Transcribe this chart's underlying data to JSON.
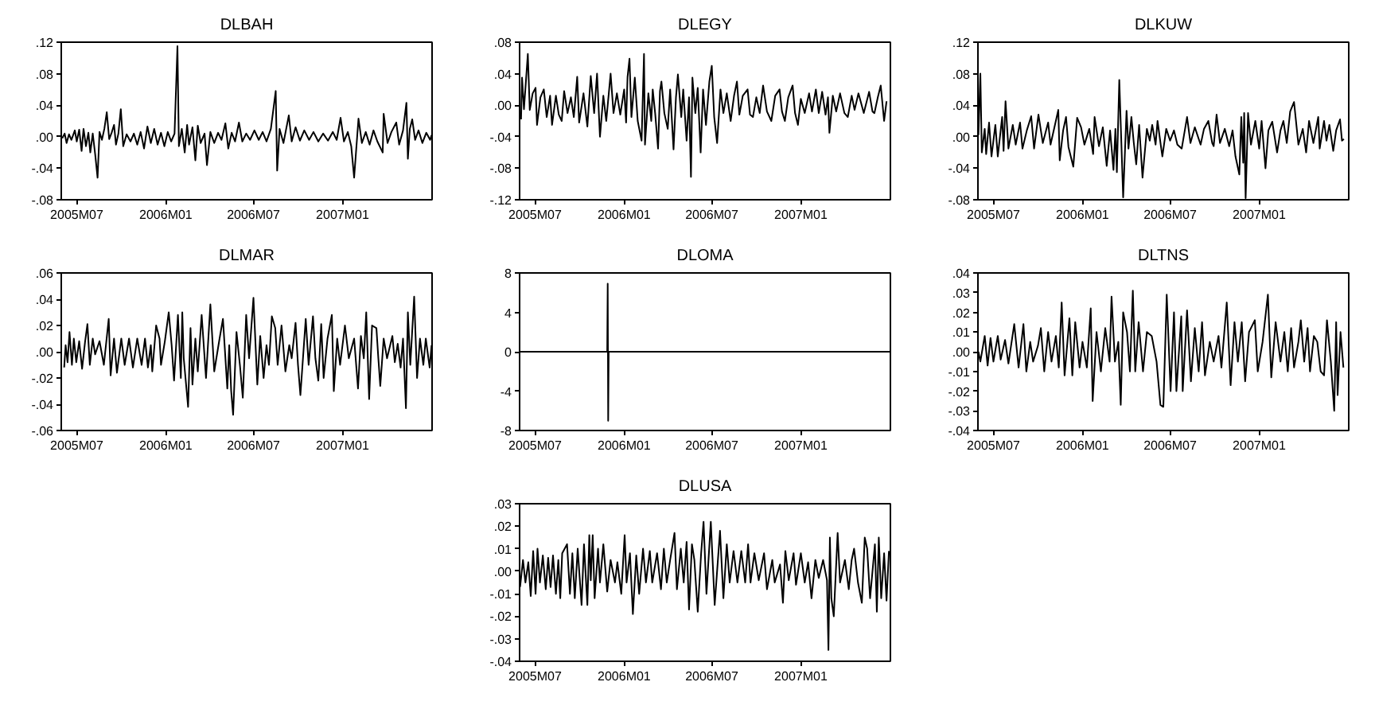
{
  "chart_data": [
    {
      "type": "line",
      "title": "DLBAH",
      "x": [
        "2005-06-01",
        "2005-06-06",
        "2005-06-10",
        "2005-06-15",
        "2005-06-20",
        "2005-06-27",
        "2005-07-01",
        "2005-07-06",
        "2005-07-11",
        "2005-07-15",
        "2005-07-20",
        "2005-07-25",
        "2005-07-29",
        "2005-08-03",
        "2005-08-08",
        "2005-08-13",
        "2005-08-17",
        "2005-08-22",
        "2005-08-27",
        "2005-09-01",
        "2005-09-06",
        "2005-09-11",
        "2005-09-16",
        "2005-09-20",
        "2005-09-25",
        "2005-09-30",
        "2005-10-05",
        "2005-10-12",
        "2005-10-20",
        "2005-10-27",
        "2005-11-03",
        "2005-11-10",
        "2005-11-17",
        "2005-11-24",
        "2005-12-01",
        "2005-12-08",
        "2005-12-15",
        "2005-12-22",
        "2005-12-29",
        "2006-01-05",
        "2006-01-12",
        "2006-01-19",
        "2006-01-25",
        "2006-01-28",
        "2006-02-03",
        "2006-02-09",
        "2006-02-14",
        "2006-02-18",
        "2006-02-25",
        "2006-03-03",
        "2006-03-08",
        "2006-03-14",
        "2006-03-22",
        "2006-03-27",
        "2006-04-03",
        "2006-04-11",
        "2006-04-19",
        "2006-04-26",
        "2006-05-04",
        "2006-05-10",
        "2006-05-17",
        "2006-05-24",
        "2006-06-01",
        "2006-06-08",
        "2006-06-16",
        "2006-06-24",
        "2006-07-03",
        "2006-07-12",
        "2006-07-20",
        "2006-07-28",
        "2006-08-06",
        "2006-08-16",
        "2006-08-19",
        "2006-08-24",
        "2006-09-01",
        "2006-09-12",
        "2006-09-18",
        "2006-09-26",
        "2006-10-05",
        "2006-10-14",
        "2006-10-24",
        "2006-11-02",
        "2006-11-12",
        "2006-11-22",
        "2006-12-02",
        "2006-12-12",
        "2006-12-20",
        "2006-12-28",
        "2007-01-04",
        "2007-01-12",
        "2007-01-19",
        "2007-01-25",
        "2007-02-03",
        "2007-02-10",
        "2007-02-18",
        "2007-02-26",
        "2007-03-06",
        "2007-03-14",
        "2007-03-25",
        "2007-03-27",
        "2007-04-04",
        "2007-04-12",
        "2007-04-22",
        "2007-04-28",
        "2007-05-06",
        "2007-05-13",
        "2007-05-16",
        "2007-05-20",
        "2007-05-25",
        "2007-05-31",
        "2007-06-07",
        "2007-06-15",
        "2007-06-23",
        "2007-07-01",
        "2007-07-04"
      ],
      "series": [
        {
          "color": "#000000",
          "values": [
            -0.002,
            0.004,
            -0.008,
            0.003,
            -0.004,
            0.008,
            -0.006,
            0.009,
            -0.018,
            0.01,
            -0.012,
            0.005,
            -0.02,
            0.004,
            -0.022,
            -0.052,
            0.006,
            -0.004,
            0.01,
            0.031,
            -0.003,
            0.005,
            0.015,
            -0.01,
            0.004,
            0.035,
            -0.012,
            0.003,
            -0.006,
            0.004,
            -0.01,
            0.006,
            -0.015,
            0.013,
            -0.008,
            0.01,
            -0.01,
            0.005,
            -0.012,
            0.006,
            -0.006,
            0.004,
            0.115,
            -0.012,
            0.01,
            -0.02,
            0.015,
            -0.01,
            0.012,
            -0.03,
            0.014,
            -0.008,
            0.004,
            -0.036,
            0.006,
            -0.008,
            0.005,
            -0.004,
            0.017,
            -0.015,
            0.005,
            -0.006,
            0.018,
            -0.006,
            0.004,
            -0.004,
            0.008,
            -0.004,
            0.006,
            -0.006,
            0.01,
            0.058,
            -0.043,
            0.01,
            -0.008,
            0.027,
            -0.006,
            0.012,
            -0.005,
            0.008,
            -0.004,
            0.006,
            -0.006,
            0.004,
            -0.005,
            0.006,
            -0.004,
            0.024,
            -0.006,
            0.006,
            -0.012,
            -0.052,
            0.023,
            -0.008,
            0.006,
            -0.01,
            0.008,
            -0.006,
            -0.02,
            0.029,
            -0.008,
            0.006,
            0.018,
            -0.01,
            0.008,
            0.043,
            -0.028,
            0.01,
            0.022,
            -0.004,
            0.008,
            -0.008,
            0.005,
            -0.004,
            0.002
          ]
        }
      ],
      "xlim": [
        "2005-05-30",
        "2007-07-05"
      ],
      "xticks": [
        {
          "value": "2005-07-01",
          "label": "2005M07"
        },
        {
          "value": "2006-01-01",
          "label": "2006M01"
        },
        {
          "value": "2006-07-01",
          "label": "2006M07"
        },
        {
          "value": "2007-01-01",
          "label": "2007M01"
        }
      ],
      "ylim": [
        -0.08,
        0.12
      ],
      "yticks": [
        {
          "value": 0.12,
          "label": ".12"
        },
        {
          "value": 0.08,
          "label": ".08"
        },
        {
          "value": 0.04,
          "label": ".04"
        },
        {
          "value": 0,
          "label": ".00"
        },
        {
          "value": -0.04,
          "label": "-.04"
        },
        {
          "value": -0.08,
          "label": "-.08"
        }
      ]
    },
    {
      "type": "line",
      "title": "DLEGY",
      "x": [
        "2005-06-02",
        "2005-06-04",
        "2005-06-08",
        "2005-06-16",
        "2005-06-20",
        "2005-06-26",
        "2005-07-02",
        "2005-07-05",
        "2005-07-12",
        "2005-07-19",
        "2005-07-25",
        "2005-08-01",
        "2005-08-05",
        "2005-08-13",
        "2005-08-19",
        "2005-08-25",
        "2005-08-30",
        "2005-09-06",
        "2005-09-13",
        "2005-09-19",
        "2005-09-26",
        "2005-09-30",
        "2005-10-09",
        "2005-10-17",
        "2005-10-24",
        "2005-10-31",
        "2005-11-06",
        "2005-11-12",
        "2005-11-19",
        "2005-11-25",
        "2005-12-04",
        "2005-12-10",
        "2005-12-17",
        "2005-12-24",
        "2006-01-01",
        "2006-01-05",
        "2006-01-08",
        "2006-01-12",
        "2006-01-16",
        "2006-01-23",
        "2006-01-29",
        "2006-02-06",
        "2006-02-11",
        "2006-02-13",
        "2006-02-20",
        "2006-02-26",
        "2006-03-01",
        "2006-03-06",
        "2006-03-12",
        "2006-03-16",
        "2006-03-19",
        "2006-03-25",
        "2006-04-01",
        "2006-04-06",
        "2006-04-13",
        "2006-04-18",
        "2006-04-22",
        "2006-04-29",
        "2006-05-03",
        "2006-05-10",
        "2006-05-15",
        "2006-05-19",
        "2006-05-22",
        "2006-05-28",
        "2006-06-02",
        "2006-06-08",
        "2006-06-13",
        "2006-06-19",
        "2006-06-26",
        "2006-07-01",
        "2006-07-06",
        "2006-07-12",
        "2006-07-19",
        "2006-07-25",
        "2006-08-01",
        "2006-08-09",
        "2006-08-16",
        "2006-08-22",
        "2006-08-27",
        "2006-09-03",
        "2006-09-13",
        "2006-09-18",
        "2006-09-24",
        "2006-10-01",
        "2006-10-08",
        "2006-10-15",
        "2006-10-23",
        "2006-11-01",
        "2006-11-09",
        "2006-11-18",
        "2006-11-23",
        "2006-11-29",
        "2006-12-06",
        "2006-12-15",
        "2006-12-20",
        "2006-12-26",
        "2007-01-01",
        "2007-01-09",
        "2007-01-18",
        "2007-01-24",
        "2007-02-01",
        "2007-02-07",
        "2007-02-14",
        "2007-02-21",
        "2007-02-26",
        "2007-03-01",
        "2007-03-08",
        "2007-03-15",
        "2007-03-23",
        "2007-04-01",
        "2007-04-08",
        "2007-04-16",
        "2007-04-22",
        "2007-04-30",
        "2007-05-11",
        "2007-05-22",
        "2007-05-29",
        "2007-06-02",
        "2007-06-09",
        "2007-06-15",
        "2007-06-22",
        "2007-06-27"
      ],
      "series": [
        {
          "color": "#000000",
          "values": [
            -0.018,
            0.035,
            -0.005,
            0.065,
            -0.006,
            0.015,
            0.022,
            -0.025,
            0.01,
            0.02,
            -0.015,
            0.012,
            -0.025,
            0.012,
            -0.012,
            -0.02,
            0.018,
            -0.01,
            0.01,
            -0.015,
            0.036,
            -0.022,
            0.015,
            -0.027,
            0.037,
            -0.01,
            0.04,
            -0.04,
            0.012,
            -0.02,
            0.04,
            -0.01,
            0.015,
            -0.012,
            0.02,
            -0.022,
            0.036,
            0.059,
            -0.015,
            0.035,
            -0.02,
            -0.045,
            0.065,
            -0.05,
            0.015,
            -0.02,
            0.02,
            -0.01,
            -0.055,
            0.018,
            0.03,
            -0.01,
            -0.03,
            0.02,
            -0.056,
            0.01,
            0.039,
            -0.015,
            0.02,
            -0.045,
            0.01,
            -0.091,
            0.035,
            -0.01,
            0.022,
            -0.06,
            0.02,
            -0.025,
            0.03,
            0.05,
            -0.015,
            -0.048,
            0.02,
            -0.01,
            0.015,
            -0.02,
            0.012,
            0.03,
            -0.012,
            0.012,
            0.02,
            -0.012,
            -0.015,
            0.01,
            -0.01,
            0.025,
            -0.008,
            -0.02,
            0.012,
            0.02,
            -0.008,
            -0.02,
            0.01,
            0.025,
            -0.01,
            -0.025,
            0.008,
            -0.01,
            0.015,
            -0.008,
            0.02,
            -0.01,
            0.017,
            -0.012,
            0.01,
            -0.035,
            0.012,
            -0.008,
            0.015,
            -0.01,
            -0.015,
            0.012,
            -0.006,
            0.015,
            -0.01,
            0.017,
            -0.008,
            -0.01,
            0.01,
            0.025,
            -0.02,
            0.005
          ]
        }
      ],
      "xlim": [
        "2005-05-30",
        "2007-07-05"
      ],
      "xticks": [
        {
          "value": "2005-07-01",
          "label": "2005M07"
        },
        {
          "value": "2006-01-01",
          "label": "2006M01"
        },
        {
          "value": "2006-07-01",
          "label": "2006M07"
        },
        {
          "value": "2007-01-01",
          "label": "2007M01"
        }
      ],
      "ylim": [
        -0.12,
        0.08
      ],
      "yticks": [
        {
          "value": 0.08,
          "label": ".08"
        },
        {
          "value": 0.04,
          "label": ".04"
        },
        {
          "value": 0,
          "label": ".00"
        },
        {
          "value": -0.04,
          "label": "-.04"
        },
        {
          "value": -0.08,
          "label": "-.08"
        },
        {
          "value": -0.12,
          "label": "-.12"
        }
      ]
    },
    {
      "type": "line",
      "title": "DLKUW",
      "x": [
        "2005-05-31",
        "2005-06-04",
        "2005-06-07",
        "2005-06-13",
        "2005-06-16",
        "2005-06-22",
        "2005-06-27",
        "2005-07-05",
        "2005-07-10",
        "2005-07-19",
        "2005-07-22",
        "2005-07-26",
        "2005-08-01",
        "2005-08-10",
        "2005-08-16",
        "2005-08-25",
        "2005-08-30",
        "2005-09-08",
        "2005-09-17",
        "2005-09-23",
        "2005-10-02",
        "2005-10-11",
        "2005-10-22",
        "2005-10-27",
        "2005-11-04",
        "2005-11-12",
        "2005-11-15",
        "2005-11-22",
        "2005-11-28",
        "2005-12-03",
        "2005-12-13",
        "2005-12-21",
        "2005-12-29",
        "2006-01-05",
        "2006-01-15",
        "2006-01-23",
        "2006-01-26",
        "2006-02-04",
        "2006-02-12",
        "2006-02-20",
        "2006-02-27",
        "2006-03-06",
        "2006-03-10",
        "2006-03-13",
        "2006-03-18",
        "2006-03-26",
        "2006-04-02",
        "2006-04-06",
        "2006-04-12",
        "2006-04-17",
        "2006-04-22",
        "2006-04-28",
        "2006-05-05",
        "2006-05-14",
        "2006-05-20",
        "2006-05-25",
        "2006-06-01",
        "2006-06-05",
        "2006-06-12",
        "2006-06-15",
        "2006-06-23",
        "2006-07-01",
        "2006-07-09",
        "2006-07-16",
        "2006-07-25",
        "2006-08-05",
        "2006-08-12",
        "2006-08-21",
        "2006-09-02",
        "2006-09-09",
        "2006-09-18",
        "2006-09-26",
        "2006-09-29",
        "2006-10-05",
        "2006-10-12",
        "2006-10-22",
        "2006-10-31",
        "2006-11-07",
        "2006-11-13",
        "2006-11-21",
        "2006-11-25",
        "2006-11-29",
        "2006-12-01",
        "2006-12-04",
        "2006-12-09",
        "2006-12-15",
        "2006-12-24",
        "2007-01-01",
        "2007-01-06",
        "2007-01-14",
        "2007-01-20",
        "2007-01-28",
        "2007-02-07",
        "2007-02-14",
        "2007-02-20",
        "2007-02-27",
        "2007-03-06",
        "2007-03-14",
        "2007-03-23",
        "2007-04-01",
        "2007-04-08",
        "2007-04-14",
        "2007-04-23",
        "2007-05-03",
        "2007-05-06",
        "2007-05-15",
        "2007-05-20",
        "2007-05-26",
        "2007-06-03",
        "2007-06-09",
        "2007-06-17",
        "2007-06-21",
        "2007-06-25"
      ],
      "series": [
        {
          "color": "#000000",
          "values": [
            0.002,
            0.08,
            -0.02,
            0.01,
            -0.022,
            0.018,
            -0.025,
            0.015,
            -0.025,
            0.025,
            -0.018,
            0.045,
            -0.015,
            0.015,
            -0.01,
            0.018,
            -0.015,
            0.008,
            0.026,
            -0.015,
            0.028,
            -0.008,
            0.018,
            -0.01,
            0.012,
            0.034,
            -0.03,
            0.008,
            0.025,
            -0.013,
            -0.038,
            0.024,
            0.012,
            -0.01,
            0.01,
            -0.022,
            0.025,
            -0.012,
            0.012,
            -0.037,
            0.008,
            -0.042,
            0.01,
            -0.045,
            0.072,
            -0.077,
            0.033,
            -0.015,
            0.025,
            -0.008,
            -0.035,
            0.015,
            -0.052,
            0.01,
            -0.005,
            0.015,
            -0.01,
            0.02,
            -0.012,
            -0.025,
            0.01,
            -0.005,
            0.008,
            -0.01,
            -0.015,
            0.025,
            -0.008,
            0.012,
            -0.01,
            0.01,
            0.02,
            -0.008,
            -0.012,
            0.028,
            -0.008,
            0.01,
            -0.012,
            0.008,
            -0.025,
            -0.048,
            0.025,
            -0.033,
            0.03,
            -0.078,
            0.03,
            -0.01,
            0.02,
            -0.015,
            0.02,
            -0.04,
            0.008,
            0.019,
            -0.02,
            0.008,
            0.02,
            -0.008,
            0.032,
            0.044,
            -0.01,
            0.01,
            -0.02,
            0.02,
            -0.008,
            0.025,
            -0.015,
            0.02,
            -0.005,
            0.015,
            -0.018,
            0.008,
            0.022,
            -0.005,
            -0.003
          ]
        }
      ],
      "xlim": [
        "2005-05-30",
        "2007-07-05"
      ],
      "xticks": [
        {
          "value": "2005-07-01",
          "label": "2005M07"
        },
        {
          "value": "2006-01-01",
          "label": "2006M01"
        },
        {
          "value": "2006-07-01",
          "label": "2006M07"
        },
        {
          "value": "2007-01-01",
          "label": "2007M01"
        }
      ],
      "ylim": [
        -0.08,
        0.12
      ],
      "yticks": [
        {
          "value": 0.12,
          "label": ".12"
        },
        {
          "value": 0.08,
          "label": ".08"
        },
        {
          "value": 0.04,
          "label": ".04"
        },
        {
          "value": 0,
          "label": ".00"
        },
        {
          "value": -0.04,
          "label": "-.04"
        },
        {
          "value": -0.08,
          "label": "-.08"
        }
      ]
    },
    {
      "type": "line",
      "title": "DLMAR",
      "x": [
        "2005-06-05",
        "2005-06-08",
        "2005-06-12",
        "2005-06-16",
        "2005-06-21",
        "2005-06-25",
        "2005-06-30",
        "2005-07-06",
        "2005-07-12",
        "2005-07-18",
        "2005-07-23",
        "2005-07-28",
        "2005-08-03",
        "2005-08-08",
        "2005-08-17",
        "2005-08-26",
        "2005-09-05",
        "2005-09-09",
        "2005-09-16",
        "2005-09-22",
        "2005-10-01",
        "2005-10-08",
        "2005-10-17",
        "2005-10-25",
        "2005-11-03",
        "2005-11-12",
        "2005-11-19",
        "2005-11-25",
        "2005-12-01",
        "2005-12-04",
        "2005-12-12",
        "2005-12-19",
        "2005-12-22",
        "2005-12-30",
        "2006-01-07",
        "2006-01-13",
        "2006-01-18",
        "2006-01-26",
        "2006-02-01",
        "2006-02-04",
        "2006-02-07",
        "2006-02-16",
        "2006-02-21",
        "2006-02-25",
        "2006-03-03",
        "2006-03-08",
        "2006-03-16",
        "2006-03-25",
        "2006-04-03",
        "2006-04-11",
        "2006-04-22",
        "2006-04-29",
        "2006-05-08",
        "2006-05-12",
        "2006-05-16",
        "2006-05-20",
        "2006-05-27",
        "2006-06-03",
        "2006-06-09",
        "2006-06-16",
        "2006-06-22",
        "2006-07-01",
        "2006-07-09",
        "2006-07-15",
        "2006-07-22",
        "2006-07-28",
        "2006-08-02",
        "2006-08-08",
        "2006-08-15",
        "2006-08-20",
        "2006-08-28",
        "2006-09-05",
        "2006-09-13",
        "2006-09-18",
        "2006-09-26",
        "2006-10-01",
        "2006-10-06",
        "2006-10-17",
        "2006-10-23",
        "2006-11-01",
        "2006-11-06",
        "2006-11-12",
        "2006-11-18",
        "2006-11-23",
        "2006-12-01",
        "2006-12-10",
        "2006-12-14",
        "2006-12-21",
        "2006-12-27",
        "2007-01-06",
        "2007-01-14",
        "2007-01-25",
        "2007-02-02",
        "2007-02-08",
        "2007-02-14",
        "2007-02-19",
        "2007-02-25",
        "2007-03-03",
        "2007-03-12",
        "2007-03-16",
        "2007-03-20",
        "2007-03-27",
        "2007-04-03",
        "2007-04-14",
        "2007-04-19",
        "2007-04-25",
        "2007-05-01",
        "2007-05-06",
        "2007-05-12",
        "2007-05-16",
        "2007-05-21",
        "2007-05-29",
        "2007-06-04",
        "2007-06-10",
        "2007-06-17",
        "2007-06-22",
        "2007-06-30",
        "2007-07-04"
      ],
      "series": [
        {
          "color": "#000000",
          "values": [
            -0.012,
            0.005,
            -0.008,
            0.015,
            -0.01,
            0.01,
            -0.008,
            0.008,
            -0.013,
            0.007,
            0.021,
            -0.01,
            0.01,
            -0.002,
            0.008,
            -0.01,
            0.025,
            -0.018,
            0.01,
            -0.016,
            0.01,
            -0.01,
            0.01,
            -0.012,
            0.01,
            -0.01,
            0.01,
            -0.012,
            0.005,
            -0.015,
            0.02,
            0.01,
            -0.01,
            0.008,
            0.03,
            0.005,
            -0.022,
            0.028,
            -0.02,
            0.03,
            -0.005,
            -0.042,
            0.018,
            -0.025,
            0.01,
            -0.015,
            0.028,
            -0.02,
            0.036,
            -0.015,
            0.01,
            0.025,
            -0.028,
            0.005,
            -0.03,
            -0.048,
            0.015,
            -0.01,
            -0.035,
            0.028,
            -0.005,
            0.041,
            -0.025,
            0.012,
            -0.02,
            0.005,
            -0.01,
            0.027,
            0.018,
            -0.01,
            0.02,
            -0.015,
            0.005,
            -0.005,
            0.022,
            -0.01,
            -0.033,
            0.025,
            -0.01,
            0.027,
            -0.005,
            -0.022,
            0.021,
            -0.02,
            0.01,
            0.028,
            -0.03,
            0.01,
            -0.01,
            0.02,
            -0.005,
            0.01,
            -0.028,
            0.012,
            -0.005,
            0.03,
            -0.036,
            0.02,
            0.018,
            -0.005,
            -0.026,
            0.01,
            -0.005,
            0.012,
            -0.008,
            0.006,
            -0.012,
            0.01,
            -0.043,
            0.03,
            -0.01,
            0.042,
            -0.02,
            0.01,
            -0.01,
            0.01,
            -0.012,
            0.005
          ]
        }
      ],
      "xlim": [
        "2005-05-30",
        "2007-07-05"
      ],
      "xticks": [
        {
          "value": "2005-07-01",
          "label": "2005M07"
        },
        {
          "value": "2006-01-01",
          "label": "2006M01"
        },
        {
          "value": "2006-07-01",
          "label": "2006M07"
        },
        {
          "value": "2007-01-01",
          "label": "2007M01"
        }
      ],
      "ylim": [
        -0.06,
        0.06
      ],
      "yticks": [
        {
          "value": 0.06,
          "label": ".06"
        },
        {
          "value": 0.04,
          "label": ".04"
        },
        {
          "value": 0.02,
          "label": ".02"
        },
        {
          "value": 0,
          "label": ".00"
        },
        {
          "value": -0.02,
          "label": "-.02"
        },
        {
          "value": -0.04,
          "label": "-.04"
        },
        {
          "value": -0.06,
          "label": "-.06"
        }
      ]
    },
    {
      "type": "line",
      "title": "DLOMA",
      "x": [
        "2005-05-31",
        "2005-11-27",
        "2005-11-28",
        "2005-11-29",
        "2005-11-30",
        "2007-07-04"
      ],
      "series": [
        {
          "color": "#000000",
          "values": [
            0,
            0,
            6.9,
            -7.0,
            0,
            0
          ]
        }
      ],
      "xlim": [
        "2005-05-30",
        "2007-07-05"
      ],
      "xticks": [
        {
          "value": "2005-07-01",
          "label": "2005M07"
        },
        {
          "value": "2006-01-01",
          "label": "2006M01"
        },
        {
          "value": "2006-07-01",
          "label": "2006M07"
        },
        {
          "value": "2007-01-01",
          "label": "2007M01"
        }
      ],
      "ylim": [
        -8,
        8
      ],
      "yticks": [
        8,
        4,
        0,
        -4,
        -8
      ]
    },
    {
      "type": "line",
      "title": "DLTNS",
      "x": [
        "2005-05-31",
        "2005-06-04",
        "2005-06-13",
        "2005-06-19",
        "2005-06-25",
        "2005-07-01",
        "2005-07-10",
        "2005-07-16",
        "2005-07-25",
        "2005-08-01",
        "2005-08-13",
        "2005-08-22",
        "2005-09-01",
        "2005-09-07",
        "2005-09-15",
        "2005-09-21",
        "2005-10-01",
        "2005-10-07",
        "2005-10-14",
        "2005-10-22",
        "2005-10-29",
        "2005-11-07",
        "2005-11-13",
        "2005-11-19",
        "2005-11-25",
        "2005-12-05",
        "2005-12-11",
        "2005-12-17",
        "2005-12-26",
        "2006-01-01",
        "2006-01-10",
        "2006-01-18",
        "2006-01-22",
        "2006-01-30",
        "2006-02-08",
        "2006-02-17",
        "2006-02-26",
        "2006-03-02",
        "2006-03-09",
        "2006-03-16",
        "2006-03-21",
        "2006-03-26",
        "2006-04-03",
        "2006-04-09",
        "2006-04-15",
        "2006-04-20",
        "2006-04-27",
        "2006-05-06",
        "2006-05-14",
        "2006-05-24",
        "2006-06-03",
        "2006-06-11",
        "2006-06-17",
        "2006-06-24",
        "2006-07-02",
        "2006-07-09",
        "2006-07-14",
        "2006-07-24",
        "2006-07-27",
        "2006-08-05",
        "2006-08-13",
        "2006-08-21",
        "2006-08-29",
        "2006-09-05",
        "2006-09-11",
        "2006-09-21",
        "2006-09-29",
        "2006-10-09",
        "2006-10-15",
        "2006-10-26",
        "2006-11-03",
        "2006-11-11",
        "2006-11-18",
        "2006-11-26",
        "2006-12-03",
        "2006-12-11",
        "2006-12-23",
        "2006-12-29",
        "2007-01-08",
        "2007-01-19",
        "2007-01-26",
        "2007-02-04",
        "2007-02-14",
        "2007-02-22",
        "2007-03-01",
        "2007-03-08",
        "2007-03-14",
        "2007-03-23",
        "2007-03-28",
        "2007-04-04",
        "2007-04-11",
        "2007-04-16",
        "2007-04-24",
        "2007-05-01",
        "2007-05-08",
        "2007-05-15",
        "2007-05-21",
        "2007-05-29",
        "2007-06-05",
        "2007-06-09",
        "2007-06-12",
        "2007-06-18",
        "2007-06-24"
      ],
      "series": [
        {
          "color": "#000000",
          "values": [
            0.0,
            -0.005,
            0.008,
            -0.007,
            0.007,
            -0.005,
            0.008,
            -0.004,
            0.006,
            -0.006,
            0.014,
            -0.008,
            0.014,
            -0.01,
            0.005,
            -0.005,
            0.003,
            0.012,
            -0.01,
            0.01,
            -0.005,
            0.008,
            -0.008,
            0.025,
            -0.012,
            0.017,
            -0.012,
            0.015,
            -0.008,
            0.005,
            -0.008,
            0.022,
            -0.025,
            0.01,
            -0.01,
            0.012,
            -0.005,
            0.028,
            -0.005,
            0.005,
            -0.027,
            0.02,
            0.01,
            -0.01,
            0.031,
            -0.01,
            0.015,
            -0.01,
            0.01,
            0.008,
            -0.005,
            -0.027,
            -0.028,
            0.029,
            -0.02,
            0.02,
            -0.02,
            0.018,
            -0.02,
            0.021,
            -0.015,
            0.012,
            -0.01,
            0.015,
            -0.012,
            0.005,
            -0.005,
            0.008,
            -0.008,
            0.025,
            -0.017,
            0.015,
            -0.005,
            0.015,
            -0.015,
            0.01,
            0.016,
            -0.01,
            0.005,
            0.029,
            -0.013,
            0.015,
            -0.005,
            0.01,
            -0.01,
            0.012,
            -0.008,
            0.005,
            0.016,
            -0.005,
            0.012,
            -0.01,
            0.008,
            0.005,
            -0.01,
            -0.012,
            0.016,
            -0.005,
            -0.03,
            0.015,
            -0.022,
            0.01,
            -0.008
          ]
        }
      ],
      "xlim": [
        "2005-05-30",
        "2007-07-05"
      ],
      "xticks": [
        {
          "value": "2005-07-01",
          "label": "2005M07"
        },
        {
          "value": "2006-01-01",
          "label": "2006M01"
        },
        {
          "value": "2006-07-01",
          "label": "2006M07"
        },
        {
          "value": "2007-01-01",
          "label": "2007M01"
        }
      ],
      "ylim": [
        -0.04,
        0.04
      ],
      "yticks": [
        {
          "value": 0.04,
          "label": ".04"
        },
        {
          "value": 0.03,
          "label": ".03"
        },
        {
          "value": 0.02,
          "label": ".02"
        },
        {
          "value": 0.01,
          "label": ".01"
        },
        {
          "value": 0,
          "label": ".00"
        },
        {
          "value": -0.01,
          "label": "-.01"
        },
        {
          "value": -0.02,
          "label": "-.02"
        },
        {
          "value": -0.03,
          "label": "-.03"
        },
        {
          "value": -0.04,
          "label": "-.04"
        }
      ]
    },
    {
      "type": "line",
      "title": "DLUSA",
      "x": [
        "2005-05-31",
        "2005-06-06",
        "2005-06-11",
        "2005-06-17",
        "2005-06-22",
        "2005-06-27",
        "2005-07-02",
        "2005-07-06",
        "2005-07-11",
        "2005-07-17",
        "2005-07-23",
        "2005-07-28",
        "2005-08-02",
        "2005-08-07",
        "2005-08-13",
        "2005-08-18",
        "2005-08-22",
        "2005-08-26",
        "2005-09-05",
        "2005-09-11",
        "2005-09-16",
        "2005-09-21",
        "2005-09-27",
        "2005-10-05",
        "2005-10-10",
        "2005-10-17",
        "2005-10-21",
        "2005-10-24",
        "2005-10-28",
        "2005-11-01",
        "2005-11-08",
        "2005-11-12",
        "2005-11-19",
        "2005-11-27",
        "2005-12-04",
        "2005-12-13",
        "2005-12-18",
        "2005-12-26",
        "2006-01-02",
        "2006-01-06",
        "2006-01-13",
        "2006-01-19",
        "2006-01-26",
        "2006-02-01",
        "2006-02-09",
        "2006-02-15",
        "2006-02-23",
        "2006-02-28",
        "2006-03-10",
        "2006-03-18",
        "2006-03-24",
        "2006-03-30",
        "2006-04-06",
        "2006-04-15",
        "2006-04-20",
        "2006-04-28",
        "2006-05-04",
        "2006-05-10",
        "2006-05-15",
        "2006-05-21",
        "2006-05-26",
        "2006-06-02",
        "2006-06-09",
        "2006-06-14",
        "2006-06-20",
        "2006-06-29",
        "2006-07-07",
        "2006-07-18",
        "2006-07-25",
        "2006-08-01",
        "2006-08-07",
        "2006-08-15",
        "2006-08-23",
        "2006-08-31",
        "2006-09-08",
        "2006-09-14",
        "2006-09-19",
        "2006-09-27",
        "2006-10-06",
        "2006-10-17",
        "2006-10-23",
        "2006-11-03",
        "2006-11-08",
        "2006-11-19",
        "2006-11-25",
        "2006-11-30",
        "2006-12-07",
        "2006-12-17",
        "2006-12-22",
        "2007-01-01",
        "2007-01-09",
        "2007-01-16",
        "2007-01-23",
        "2007-01-31",
        "2007-02-07",
        "2007-02-16",
        "2007-02-24",
        "2007-02-27",
        "2007-03-02",
        "2007-03-05",
        "2007-03-10",
        "2007-03-18",
        "2007-03-23",
        "2007-04-02",
        "2007-04-10",
        "2007-04-16",
        "2007-04-21",
        "2007-04-29",
        "2007-05-07",
        "2007-05-13",
        "2007-05-18",
        "2007-05-24",
        "2007-06-03",
        "2007-06-07",
        "2007-06-11",
        "2007-06-16",
        "2007-06-22",
        "2007-06-27",
        "2007-07-02"
      ],
      "series": [
        {
          "color": "#000000",
          "values": [
            -0.007,
            0.005,
            -0.005,
            0.004,
            -0.011,
            0.009,
            -0.01,
            0.01,
            -0.005,
            0.007,
            -0.008,
            0.006,
            -0.007,
            0.007,
            -0.01,
            0.005,
            -0.012,
            0.008,
            0.012,
            -0.01,
            0.008,
            -0.012,
            0.01,
            -0.015,
            0.012,
            -0.015,
            0.016,
            -0.004,
            0.016,
            -0.012,
            0.01,
            -0.005,
            0.012,
            -0.009,
            0.005,
            -0.005,
            0.004,
            -0.01,
            0.016,
            -0.005,
            0.008,
            -0.019,
            0.007,
            -0.01,
            0.01,
            -0.005,
            0.009,
            -0.005,
            0.008,
            -0.008,
            0.01,
            -0.005,
            0.005,
            0.017,
            -0.008,
            0.01,
            -0.005,
            0.013,
            -0.017,
            0.012,
            0.005,
            -0.018,
            0.008,
            0.022,
            -0.01,
            0.022,
            -0.015,
            0.018,
            -0.012,
            0.012,
            -0.005,
            0.009,
            -0.005,
            0.009,
            -0.005,
            0.012,
            -0.005,
            0.008,
            -0.004,
            0.008,
            -0.008,
            0.005,
            -0.005,
            0.003,
            -0.014,
            0.009,
            -0.004,
            0.008,
            -0.006,
            0.008,
            -0.005,
            0.004,
            -0.012,
            0.005,
            -0.003,
            0.005,
            -0.004,
            -0.035,
            0.015,
            -0.012,
            -0.02,
            0.017,
            -0.005,
            0.005,
            -0.008,
            0.005,
            0.01,
            -0.005,
            -0.014,
            0.015,
            0.01,
            -0.012,
            0.012,
            -0.018,
            0.015,
            -0.012,
            0.008,
            -0.013,
            0.009
          ]
        }
      ],
      "xlim": [
        "2005-05-30",
        "2007-07-05"
      ],
      "xticks": [
        {
          "value": "2005-07-01",
          "label": "2005M07"
        },
        {
          "value": "2006-01-01",
          "label": "2006M01"
        },
        {
          "value": "2006-07-01",
          "label": "2006M07"
        },
        {
          "value": "2007-01-01",
          "label": "2007M01"
        }
      ],
      "ylim": [
        -0.04,
        0.03
      ],
      "yticks": [
        {
          "value": 0.03,
          "label": ".03"
        },
        {
          "value": 0.02,
          "label": ".02"
        },
        {
          "value": 0.01,
          "label": ".01"
        },
        {
          "value": 0,
          "label": ".00"
        },
        {
          "value": -0.01,
          "label": "-.01"
        },
        {
          "value": -0.02,
          "label": "-.02"
        },
        {
          "value": -0.03,
          "label": "-.03"
        },
        {
          "value": -0.04,
          "label": "-.04"
        }
      ]
    }
  ]
}
